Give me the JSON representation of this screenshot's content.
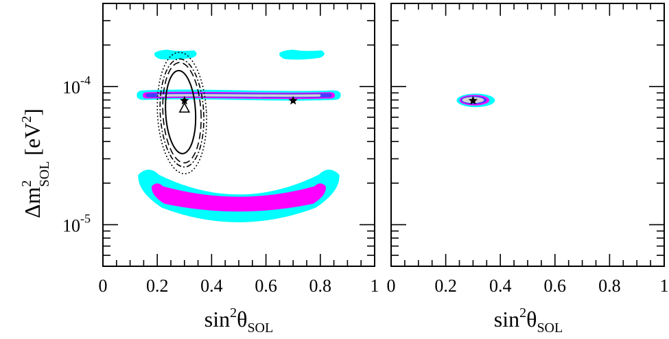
{
  "chart_data": [
    {
      "type": "contour",
      "panel": "left",
      "xlabel": {
        "base": "sin",
        "sup": "2",
        "sym": "θ",
        "sub": "SOL"
      },
      "ylabel": {
        "base": "Δm",
        "sup": "2",
        "sub": "SOL",
        "unit_open": "[eV",
        "unit_sup": "2",
        "unit_close": "]"
      },
      "xlim": [
        0,
        1
      ],
      "ylim": [
        5e-06,
        0.0004
      ],
      "yscale": "log",
      "x_ticks": [
        0,
        0.2,
        0.4,
        0.6,
        0.8,
        1
      ],
      "x_tick_labels": [
        "0",
        "0.2",
        "0.4",
        "0.6",
        "0.8",
        "1"
      ],
      "y_ticks": [
        1e-05,
        0.0001
      ],
      "y_tick_labels": [
        {
          "base": "10",
          "exp": "-5"
        },
        {
          "base": "10",
          "exp": "-4"
        }
      ],
      "colors": {
        "outer": "#00ffff",
        "middle": "#ff00ff",
        "inner": "#4040ff",
        "core": "#d3d3d3",
        "line": "#000000"
      },
      "regions": [
        {
          "level": "outer",
          "color": "#00ffff",
          "shape": "band",
          "x": [
            0.13,
            0.87
          ],
          "y_low": 8e-05,
          "y_high": 9.4e-05
        },
        {
          "level": "middle",
          "color": "#ff00ff",
          "shape": "band",
          "x": [
            0.15,
            0.85
          ],
          "y_low": 8.2e-05,
          "y_high": 9.1e-05
        },
        {
          "level": "inner",
          "color": "#4040ff",
          "shape": "band",
          "x": [
            0.16,
            0.84
          ],
          "y_low": 8.35e-05,
          "y_high": 8.95e-05
        },
        {
          "level": "core",
          "color": "#d3d3d3",
          "shape": "band",
          "x": [
            0.2,
            0.8
          ],
          "y_low": 8.45e-05,
          "y_high": 8.8e-05
        },
        {
          "level": "outer",
          "color": "#00ffff",
          "shape": "smile",
          "x": [
            0.13,
            0.87
          ],
          "y_top": 2.3e-05,
          "y_bottom": 1.05e-05
        },
        {
          "level": "middle",
          "color": "#ff00ff",
          "shape": "smile",
          "x": [
            0.18,
            0.82
          ],
          "y_top": 1.9e-05,
          "y_bottom": 1.25e-05
        },
        {
          "level": "outer",
          "color": "#00ffff",
          "shape": "island",
          "x": [
            0.19,
            0.35
          ],
          "y": [
            0.000158,
            0.000185
          ]
        },
        {
          "level": "outer",
          "color": "#00ffff",
          "shape": "island",
          "x": [
            0.65,
            0.82
          ],
          "y": [
            0.000158,
            0.000185
          ]
        }
      ],
      "contour_lines": [
        {
          "style": "solid",
          "x": [
            0.23,
            0.34
          ],
          "y": [
            3.5e-05,
            0.00014
          ]
        },
        {
          "style": "dashed",
          "x": [
            0.22,
            0.36
          ],
          "y": [
            3e-05,
            0.00016
          ]
        },
        {
          "style": "dashdot",
          "x": [
            0.21,
            0.37
          ],
          "y": [
            2.8e-05,
            0.00017
          ]
        },
        {
          "style": "dotted",
          "x": [
            0.2,
            0.38
          ],
          "y": [
            2.5e-05,
            0.00019
          ]
        }
      ],
      "markers": [
        {
          "symbol": "star",
          "x": 0.3,
          "y": 7.9e-05
        },
        {
          "symbol": "star",
          "x": 0.7,
          "y": 7.9e-05
        },
        {
          "symbol": "triangle",
          "x": 0.3,
          "y": 7e-05
        }
      ]
    },
    {
      "type": "contour",
      "panel": "right",
      "xlabel": {
        "base": "sin",
        "sup": "2",
        "sym": "θ",
        "sub": "SOL"
      },
      "xlim": [
        0,
        1
      ],
      "ylim": [
        5e-06,
        0.0004
      ],
      "yscale": "log",
      "x_ticks": [
        0,
        0.2,
        0.4,
        0.6,
        0.8,
        1
      ],
      "x_tick_labels": [
        "0",
        "0.2",
        "0.4",
        "0.6",
        "0.8",
        "1"
      ],
      "regions": [
        {
          "level": "outer",
          "color": "#00ffff",
          "shape": "ellipse",
          "x": [
            0.24,
            0.38
          ],
          "y": [
            7.1e-05,
            8.9e-05
          ]
        },
        {
          "level": "middle",
          "color": "#ff00ff",
          "shape": "ellipse",
          "x": [
            0.25,
            0.36
          ],
          "y": [
            7.3e-05,
            8.7e-05
          ]
        },
        {
          "level": "inner",
          "color": "#4040ff",
          "shape": "ellipse",
          "x": [
            0.255,
            0.35
          ],
          "y": [
            7.45e-05,
            8.55e-05
          ]
        },
        {
          "level": "core",
          "color": "#d3d3d3",
          "shape": "ellipse",
          "x": [
            0.26,
            0.34
          ],
          "y": [
            7.6e-05,
            8.4e-05
          ]
        }
      ],
      "markers": [
        {
          "symbol": "star",
          "x": 0.3,
          "y": 7.9e-05
        }
      ]
    }
  ]
}
